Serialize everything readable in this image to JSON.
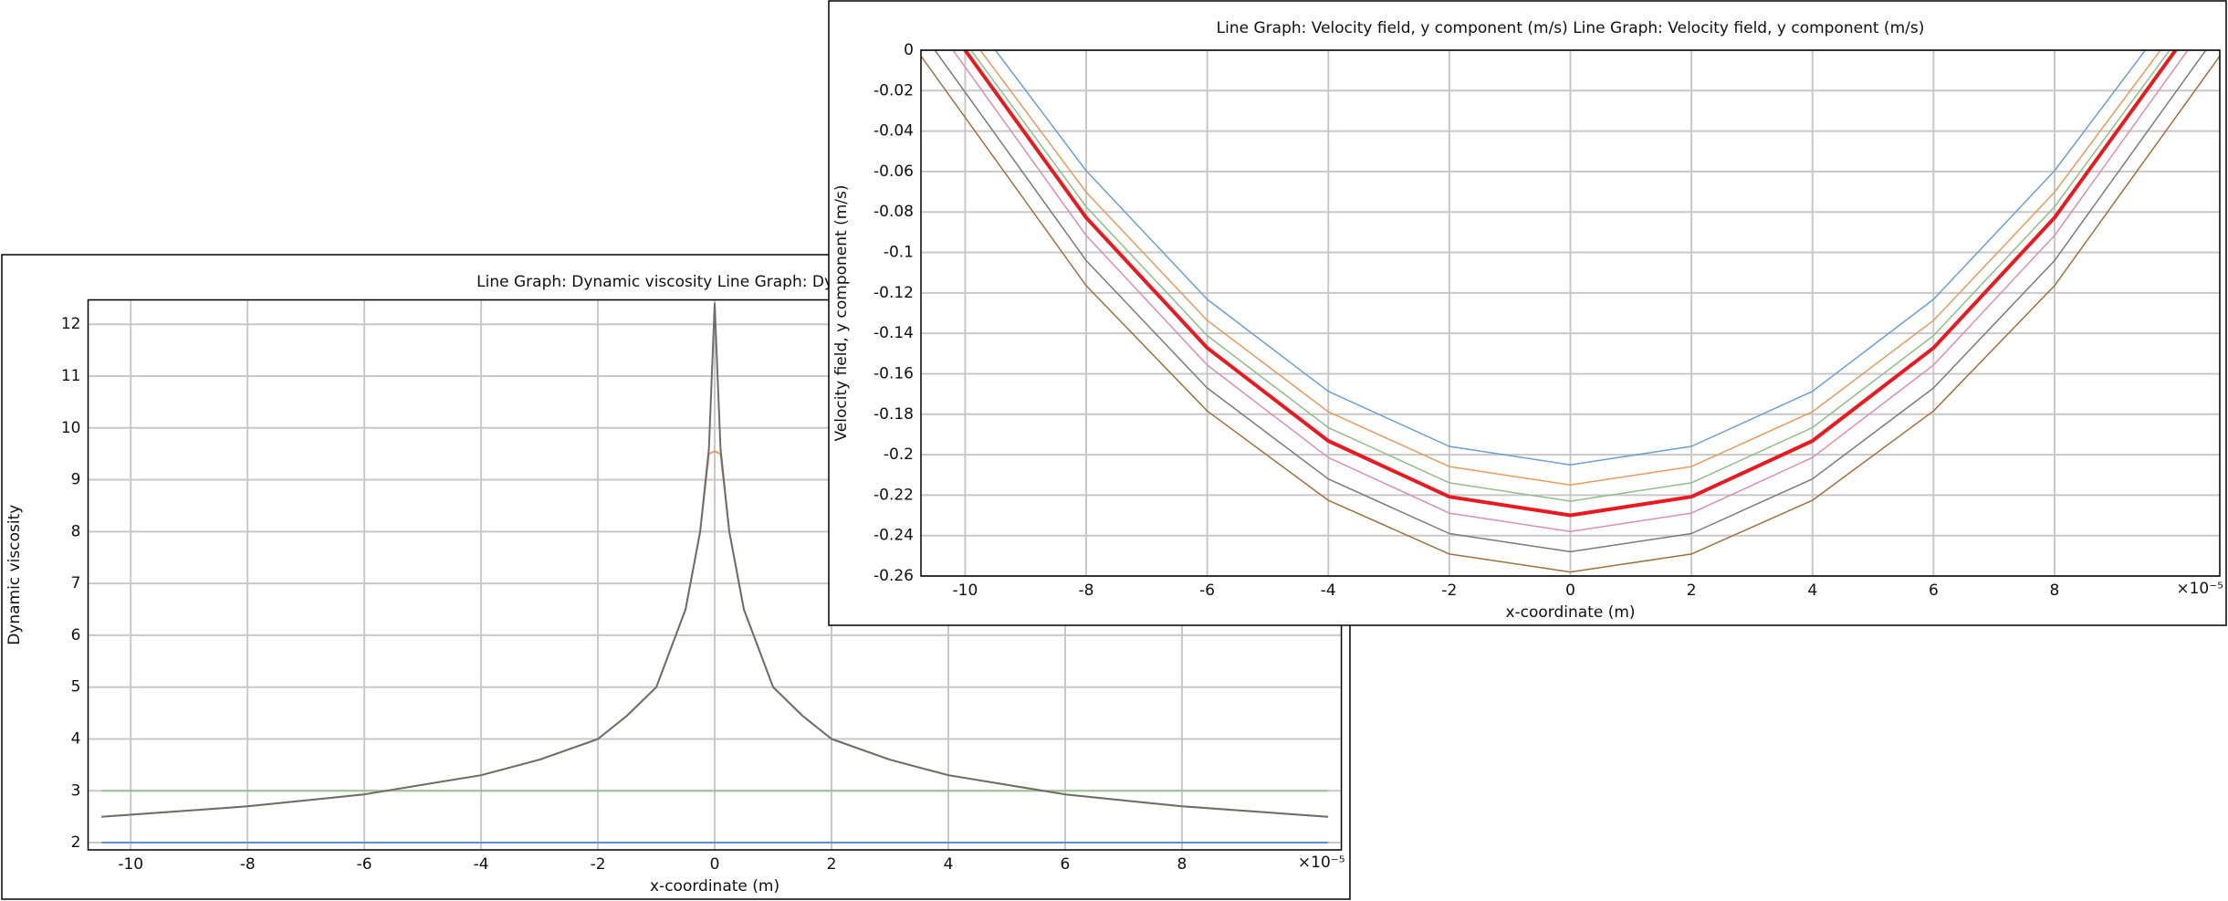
{
  "charts": [
    {
      "type": "line",
      "title": "Line Graph: Dynamic viscosity  Line Graph: Dynamic viscosity",
      "xlabel": "x-coordinate (m)",
      "ylabel": "Dynamic viscosity",
      "x_exponent": "×10⁻⁵",
      "xlim": [
        -10.73,
        10.73
      ],
      "ylim": [
        1.86,
        12.47
      ],
      "xticks": [
        -10,
        -8,
        -6,
        -4,
        -2,
        0,
        2,
        4,
        6,
        8
      ],
      "yticks": [
        2,
        3,
        4,
        5,
        6,
        7,
        8,
        9,
        10,
        11,
        12
      ],
      "grid": true,
      "x": [
        -10.5,
        -8,
        -6,
        -4,
        -3,
        -2,
        -1.5,
        -1,
        -0.5,
        -0.25,
        -0.1,
        0,
        0.1,
        0.25,
        0.5,
        1,
        1.5,
        2,
        3,
        4,
        6,
        8,
        10.5
      ],
      "series": [
        {
          "color": "#5b8fd6",
          "values": [
            2,
            2,
            2,
            2,
            2,
            2,
            2,
            2,
            2,
            2,
            2,
            2,
            2,
            2,
            2,
            2,
            2,
            2,
            2,
            2,
            2,
            2,
            2
          ]
        },
        {
          "color": "#9bc48c",
          "values": [
            3,
            3,
            3,
            3,
            3,
            3,
            3,
            3,
            3,
            3,
            3,
            3,
            3,
            3,
            3,
            3,
            3,
            3,
            3,
            3,
            3,
            3,
            3
          ]
        },
        {
          "color": "#e3a060",
          "values": [
            2.5,
            2.7,
            2.93,
            3.3,
            3.6,
            4.0,
            4.45,
            5.0,
            6.5,
            8.0,
            9.5,
            9.55,
            9.5,
            8.0,
            6.5,
            5.0,
            4.45,
            4.0,
            3.6,
            3.3,
            2.93,
            2.7,
            2.5
          ]
        },
        {
          "color": "#6d6d6d",
          "values": [
            2.5,
            2.7,
            2.93,
            3.3,
            3.6,
            4.0,
            4.45,
            5.0,
            6.5,
            8.0,
            9.6,
            12.4,
            9.6,
            8.0,
            6.5,
            5.0,
            4.45,
            4.0,
            3.6,
            3.3,
            2.93,
            2.7,
            2.5
          ]
        }
      ]
    },
    {
      "type": "line",
      "title": "Line Graph: Velocity field, y component (m/s)  Line Graph: Velocity field, y component (m/s)",
      "xlabel": "x-coordinate (m)",
      "ylabel": "Velocity field, y component (m/s)",
      "x_exponent": "×10⁻⁵",
      "xlim": [
        -10.73,
        10.73
      ],
      "ylim": [
        -0.26,
        0
      ],
      "xticks": [
        -10,
        -8,
        -6,
        -4,
        -2,
        0,
        2,
        4,
        6,
        8
      ],
      "yticks": [
        0,
        -0.02,
        -0.04,
        -0.06,
        -0.08,
        -0.1,
        -0.12,
        -0.14,
        -0.16,
        -0.18,
        -0.2,
        -0.22,
        -0.24,
        -0.26
      ],
      "grid": true,
      "series": [
        {
          "color": "#6a9fd4",
          "line_width": 1.5,
          "x": [
            -9.5,
            -8,
            -6,
            -4,
            -2,
            0,
            2,
            4,
            6,
            8,
            9.5
          ],
          "values": [
            0,
            -0.0596,
            -0.1232,
            -0.1687,
            -0.1959,
            -0.205,
            -0.1959,
            -0.1687,
            -0.1232,
            -0.0596,
            0
          ]
        },
        {
          "color": "#e89a5a",
          "line_width": 1.5,
          "x": [
            -9.75,
            -8,
            -6,
            -4,
            -2,
            0,
            2,
            4,
            6,
            8,
            9.75
          ],
          "values": [
            0,
            -0.0702,
            -0.1336,
            -0.1788,
            -0.2059,
            -0.215,
            -0.2059,
            -0.1788,
            -0.1336,
            -0.0702,
            0
          ]
        },
        {
          "color": "#8fbf86",
          "line_width": 1.5,
          "x": [
            -9.9,
            -8,
            -6,
            -4,
            -2,
            0,
            2,
            4,
            6,
            8,
            9.9
          ],
          "values": [
            0,
            -0.0774,
            -0.1411,
            -0.1866,
            -0.2139,
            -0.223,
            -0.2139,
            -0.1866,
            -0.1411,
            -0.0774,
            0
          ]
        },
        {
          "color": "#e8191f",
          "line_width": 4,
          "x": [
            -10,
            -8,
            -6,
            -4,
            -2,
            0,
            2,
            4,
            6,
            8,
            10
          ],
          "values": [
            0,
            -0.0828,
            -0.1472,
            -0.1932,
            -0.2208,
            -0.23,
            -0.2208,
            -0.1932,
            -0.1472,
            -0.0828,
            0
          ]
        },
        {
          "color": "#d98fb0",
          "line_width": 1.5,
          "x": [
            -10.2,
            -8,
            -6,
            -4,
            -2,
            0,
            2,
            4,
            6,
            8,
            10.2
          ],
          "values": [
            0,
            -0.0916,
            -0.1557,
            -0.2014,
            -0.2289,
            -0.238,
            -0.2289,
            -0.2014,
            -0.1557,
            -0.0916,
            0
          ]
        },
        {
          "color": "#7a7a7a",
          "line_width": 1.5,
          "x": [
            -10.5,
            -8,
            -6,
            -4,
            -2,
            0,
            2,
            4,
            6,
            8,
            10.5
          ],
          "values": [
            0,
            -0.104,
            -0.167,
            -0.212,
            -0.239,
            -0.248,
            -0.239,
            -0.212,
            -0.167,
            -0.104,
            0
          ]
        },
        {
          "color": "#a0703c",
          "line_width": 1.5,
          "x": [
            -10.8,
            -8,
            -6,
            -4,
            -2,
            0,
            2,
            4,
            6,
            8,
            10.8
          ],
          "values": [
            0,
            -0.1164,
            -0.1784,
            -0.2226,
            -0.2491,
            -0.258,
            -0.2491,
            -0.2226,
            -0.1784,
            -0.1164,
            0
          ]
        }
      ]
    }
  ]
}
